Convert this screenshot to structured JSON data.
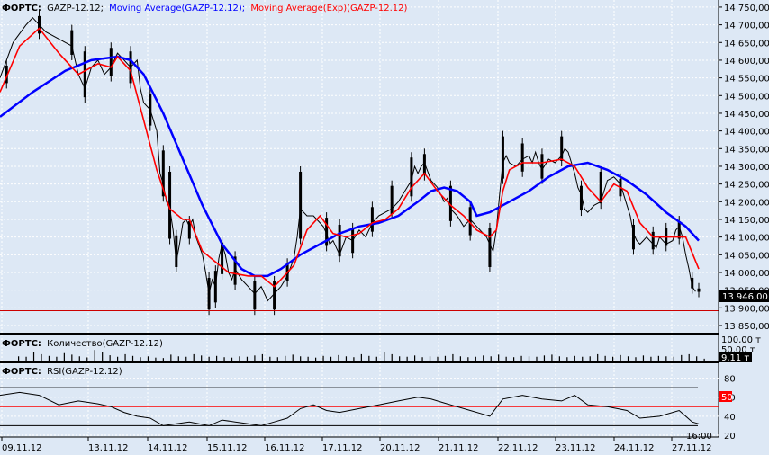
{
  "main_panel": {
    "label_prefix": "ФОРТС:",
    "ticker": "GAZP-12.12;",
    "ma_label": "Moving Average(GAZP-12.12);",
    "ema_label": "Moving Average(Exp)(GAZP-12.12)",
    "price_ticks": [
      "14 750,00",
      "14 700,00",
      "14 650,00",
      "14 600,00",
      "14 550,00",
      "14 500,00",
      "14 450,00",
      "14 400,00",
      "14 350,00",
      "14 300,00",
      "14 250,00",
      "14 200,00",
      "14 150,00",
      "14 100,00",
      "14 050,00",
      "14 000,00",
      "13 950,00",
      "13 900,00",
      "13 850,00"
    ],
    "last_price_label": "13 946,00",
    "hline_price": 13892
  },
  "volume_panel": {
    "label_prefix": "ФОРТС:",
    "label": "Количество(GAZP-12.12)",
    "ticks": [
      "100,00 т",
      "50,00 т"
    ],
    "last_label": "9,11 т"
  },
  "rsi_panel": {
    "label_prefix": "ФОРТС:",
    "label": "RSI(GAZP-12.12)",
    "ticks": [
      "80",
      "60",
      "40",
      "20"
    ],
    "level_label": "50",
    "upper_level": 70,
    "lower_level": 30
  },
  "time_axis": {
    "dates": [
      "09.11.12",
      "13.11.12",
      "14.11.12",
      "15.11.12",
      "16.11.12",
      "17.11.12",
      "20.11.12",
      "21.11.12",
      "22.11.12",
      "23.11.12",
      "24.11.12",
      "27.11.12"
    ],
    "time_label": "16:00"
  },
  "colors": {
    "background": "#dde8f5",
    "grid": "#ffffff",
    "candle": "#000000",
    "ma": "#0000ff",
    "ema": "#ff0000",
    "level_line": "#cc0000",
    "last_price_box": "#000000",
    "rsi_level_box": "#ff0000"
  },
  "chart_data": {
    "type": "line",
    "symbol": "GAZP-12.12",
    "ylim": [
      13850,
      14760
    ],
    "price_path": [
      [
        0,
        14550
      ],
      [
        4,
        14650
      ],
      [
        8,
        14700
      ],
      [
        10,
        14720
      ],
      [
        14,
        14680
      ],
      [
        18,
        14660
      ],
      [
        22,
        14640
      ],
      [
        24,
        14560
      ],
      [
        26,
        14520
      ],
      [
        28,
        14580
      ],
      [
        30,
        14600
      ],
      [
        32,
        14560
      ],
      [
        34,
        14580
      ],
      [
        36,
        14620
      ],
      [
        38,
        14600
      ],
      [
        40,
        14580
      ],
      [
        42,
        14600
      ],
      [
        43,
        14520
      ],
      [
        44,
        14480
      ],
      [
        46,
        14460
      ],
      [
        48,
        14400
      ],
      [
        49,
        14280
      ],
      [
        50,
        14250
      ],
      [
        51,
        14200
      ],
      [
        52,
        14180
      ],
      [
        53,
        14120
      ],
      [
        54,
        14030
      ],
      [
        55,
        14080
      ],
      [
        56,
        14140
      ],
      [
        57,
        14150
      ],
      [
        58,
        14130
      ],
      [
        59,
        14150
      ],
      [
        60,
        14100
      ],
      [
        62,
        14050
      ],
      [
        63,
        14000
      ],
      [
        64,
        13940
      ],
      [
        65,
        13980
      ],
      [
        66,
        13960
      ],
      [
        67,
        14040
      ],
      [
        68,
        14080
      ],
      [
        69,
        14050
      ],
      [
        70,
        14000
      ],
      [
        71,
        13980
      ],
      [
        72,
        14010
      ],
      [
        74,
        13980
      ],
      [
        76,
        13960
      ],
      [
        78,
        13940
      ],
      [
        79,
        13950
      ],
      [
        80,
        13960
      ],
      [
        82,
        13920
      ],
      [
        84,
        13940
      ],
      [
        86,
        13960
      ],
      [
        88,
        13990
      ],
      [
        90,
        14040
      ],
      [
        91,
        14100
      ],
      [
        92,
        14180
      ],
      [
        94,
        14160
      ],
      [
        96,
        14160
      ],
      [
        98,
        14140
      ],
      [
        99,
        14130
      ],
      [
        100,
        14110
      ],
      [
        101,
        14080
      ],
      [
        102,
        14090
      ],
      [
        104,
        14050
      ],
      [
        106,
        14100
      ],
      [
        108,
        14090
      ],
      [
        110,
        14120
      ],
      [
        112,
        14100
      ],
      [
        114,
        14140
      ],
      [
        116,
        14160
      ],
      [
        118,
        14170
      ],
      [
        120,
        14180
      ],
      [
        122,
        14200
      ],
      [
        124,
        14230
      ],
      [
        126,
        14260
      ],
      [
        127,
        14300
      ],
      [
        128,
        14280
      ],
      [
        129,
        14300
      ],
      [
        130,
        14310
      ],
      [
        132,
        14260
      ],
      [
        134,
        14240
      ],
      [
        136,
        14200
      ],
      [
        137,
        14210
      ],
      [
        138,
        14180
      ],
      [
        140,
        14160
      ],
      [
        142,
        14130
      ],
      [
        144,
        14150
      ],
      [
        146,
        14130
      ],
      [
        148,
        14110
      ],
      [
        149,
        14100
      ],
      [
        150,
        14080
      ],
      [
        151,
        14060
      ],
      [
        152,
        14120
      ],
      [
        153,
        14220
      ],
      [
        154,
        14310
      ],
      [
        155,
        14330
      ],
      [
        156,
        14310
      ],
      [
        158,
        14300
      ],
      [
        160,
        14320
      ],
      [
        162,
        14330
      ],
      [
        163,
        14310
      ],
      [
        164,
        14340
      ],
      [
        165,
        14310
      ],
      [
        166,
        14290
      ],
      [
        168,
        14320
      ],
      [
        170,
        14310
      ],
      [
        172,
        14330
      ],
      [
        173,
        14350
      ],
      [
        174,
        14340
      ],
      [
        175,
        14310
      ],
      [
        176,
        14280
      ],
      [
        177,
        14240
      ],
      [
        178,
        14220
      ],
      [
        179,
        14180
      ],
      [
        180,
        14170
      ],
      [
        182,
        14190
      ],
      [
        184,
        14200
      ],
      [
        185,
        14230
      ],
      [
        186,
        14260
      ],
      [
        188,
        14270
      ],
      [
        190,
        14250
      ],
      [
        192,
        14190
      ],
      [
        193,
        14160
      ],
      [
        194,
        14110
      ],
      [
        195,
        14090
      ],
      [
        196,
        14080
      ],
      [
        197,
        14090
      ],
      [
        198,
        14100
      ],
      [
        200,
        14080
      ],
      [
        201,
        14070
      ],
      [
        202,
        14100
      ],
      [
        204,
        14080
      ],
      [
        206,
        14090
      ],
      [
        207,
        14120
      ],
      [
        208,
        14130
      ],
      [
        209,
        14100
      ],
      [
        210,
        14050
      ],
      [
        211,
        14010
      ],
      [
        212,
        13960
      ],
      [
        213,
        13946
      ]
    ],
    "ma_path": [
      [
        0,
        14440
      ],
      [
        10,
        14510
      ],
      [
        20,
        14570
      ],
      [
        28,
        14600
      ],
      [
        36,
        14610
      ],
      [
        40,
        14600
      ],
      [
        44,
        14560
      ],
      [
        50,
        14450
      ],
      [
        56,
        14320
      ],
      [
        62,
        14190
      ],
      [
        68,
        14080
      ],
      [
        74,
        14010
      ],
      [
        78,
        13990
      ],
      [
        82,
        13990
      ],
      [
        86,
        14010
      ],
      [
        92,
        14050
      ],
      [
        98,
        14080
      ],
      [
        104,
        14110
      ],
      [
        110,
        14130
      ],
      [
        116,
        14140
      ],
      [
        122,
        14160
      ],
      [
        128,
        14200
      ],
      [
        132,
        14230
      ],
      [
        136,
        14240
      ],
      [
        140,
        14230
      ],
      [
        144,
        14200
      ],
      [
        146,
        14160
      ],
      [
        150,
        14170
      ],
      [
        156,
        14200
      ],
      [
        162,
        14230
      ],
      [
        168,
        14270
      ],
      [
        174,
        14300
      ],
      [
        180,
        14310
      ],
      [
        186,
        14290
      ],
      [
        192,
        14260
      ],
      [
        198,
        14220
      ],
      [
        204,
        14170
      ],
      [
        210,
        14130
      ],
      [
        214,
        14090
      ]
    ],
    "ema_path": [
      [
        0,
        14510
      ],
      [
        6,
        14640
      ],
      [
        12,
        14690
      ],
      [
        18,
        14620
      ],
      [
        24,
        14560
      ],
      [
        30,
        14590
      ],
      [
        34,
        14580
      ],
      [
        36,
        14610
      ],
      [
        40,
        14570
      ],
      [
        44,
        14430
      ],
      [
        48,
        14290
      ],
      [
        52,
        14180
      ],
      [
        56,
        14150
      ],
      [
        58,
        14150
      ],
      [
        62,
        14060
      ],
      [
        66,
        14030
      ],
      [
        70,
        14000
      ],
      [
        76,
        13990
      ],
      [
        80,
        13990
      ],
      [
        84,
        13960
      ],
      [
        86,
        13980
      ],
      [
        90,
        14020
      ],
      [
        94,
        14120
      ],
      [
        98,
        14160
      ],
      [
        102,
        14110
      ],
      [
        106,
        14100
      ],
      [
        110,
        14110
      ],
      [
        114,
        14140
      ],
      [
        118,
        14150
      ],
      [
        122,
        14180
      ],
      [
        126,
        14240
      ],
      [
        130,
        14280
      ],
      [
        134,
        14230
      ],
      [
        138,
        14190
      ],
      [
        142,
        14160
      ],
      [
        146,
        14120
      ],
      [
        150,
        14100
      ],
      [
        152,
        14120
      ],
      [
        154,
        14230
      ],
      [
        156,
        14290
      ],
      [
        160,
        14310
      ],
      [
        166,
        14310
      ],
      [
        172,
        14320
      ],
      [
        176,
        14300
      ],
      [
        180,
        14240
      ],
      [
        184,
        14200
      ],
      [
        188,
        14250
      ],
      [
        192,
        14230
      ],
      [
        196,
        14140
      ],
      [
        200,
        14100
      ],
      [
        206,
        14100
      ],
      [
        210,
        14100
      ],
      [
        214,
        14010
      ]
    ],
    "candle_ranges": [
      [
        2,
        14520,
        14600
      ],
      [
        12,
        14660,
        14740
      ],
      [
        22,
        14600,
        14700
      ],
      [
        26,
        14480,
        14640
      ],
      [
        34,
        14540,
        14650
      ],
      [
        40,
        14520,
        14640
      ],
      [
        46,
        14400,
        14520
      ],
      [
        50,
        14200,
        14360
      ],
      [
        52,
        14080,
        14300
      ],
      [
        54,
        14000,
        14120
      ],
      [
        58,
        14080,
        14160
      ],
      [
        64,
        13880,
        14000
      ],
      [
        66,
        13900,
        14020
      ],
      [
        68,
        13980,
        14100
      ],
      [
        72,
        13950,
        14060
      ],
      [
        78,
        13880,
        13990
      ],
      [
        84,
        13880,
        13990
      ],
      [
        88,
        13960,
        14040
      ],
      [
        92,
        14080,
        14300
      ],
      [
        100,
        14060,
        14170
      ],
      [
        104,
        14030,
        14150
      ],
      [
        108,
        14040,
        14140
      ],
      [
        114,
        14100,
        14200
      ],
      [
        120,
        14150,
        14260
      ],
      [
        126,
        14200,
        14340
      ],
      [
        130,
        14260,
        14350
      ],
      [
        138,
        14130,
        14260
      ],
      [
        144,
        14090,
        14200
      ],
      [
        150,
        14000,
        14140
      ],
      [
        154,
        14250,
        14400
      ],
      [
        160,
        14270,
        14380
      ],
      [
        166,
        14250,
        14350
      ],
      [
        172,
        14300,
        14400
      ],
      [
        178,
        14160,
        14260
      ],
      [
        184,
        14180,
        14300
      ],
      [
        190,
        14200,
        14280
      ],
      [
        194,
        14050,
        14150
      ],
      [
        200,
        14050,
        14130
      ],
      [
        204,
        14060,
        14140
      ],
      [
        208,
        14080,
        14160
      ],
      [
        212,
        13940,
        14000
      ],
      [
        214,
        13930,
        13970
      ]
    ],
    "volume_values": [
      20,
      18,
      40,
      30,
      22,
      18,
      35,
      28,
      20,
      15,
      50,
      38,
      25,
      18,
      30,
      22,
      16,
      20,
      14,
      12,
      28,
      20,
      18,
      30,
      24,
      18,
      22,
      16,
      14,
      20,
      18,
      24,
      30,
      18,
      16,
      22,
      28,
      20,
      18,
      14,
      22,
      18,
      26,
      20,
      16,
      30,
      22,
      18,
      40,
      30,
      20,
      18,
      24,
      16,
      20,
      18,
      22,
      30,
      20,
      16,
      18,
      24,
      20,
      28,
      18,
      16,
      22,
      20,
      18,
      24,
      28,
      20,
      16,
      22,
      18,
      20,
      30,
      22,
      18,
      26,
      20,
      16,
      24,
      18,
      22,
      20,
      18,
      26,
      30,
      20,
      9
    ],
    "rsi_path": [
      [
        0,
        62
      ],
      [
        6,
        65
      ],
      [
        12,
        62
      ],
      [
        18,
        52
      ],
      [
        24,
        56
      ],
      [
        30,
        53
      ],
      [
        34,
        50
      ],
      [
        38,
        44
      ],
      [
        42,
        40
      ],
      [
        46,
        38
      ],
      [
        50,
        30
      ],
      [
        54,
        32
      ],
      [
        58,
        34
      ],
      [
        64,
        30
      ],
      [
        68,
        36
      ],
      [
        72,
        34
      ],
      [
        76,
        32
      ],
      [
        80,
        30
      ],
      [
        84,
        34
      ],
      [
        88,
        38
      ],
      [
        92,
        48
      ],
      [
        96,
        52
      ],
      [
        100,
        46
      ],
      [
        104,
        44
      ],
      [
        110,
        48
      ],
      [
        116,
        52
      ],
      [
        122,
        56
      ],
      [
        128,
        60
      ],
      [
        132,
        58
      ],
      [
        136,
        54
      ],
      [
        140,
        50
      ],
      [
        144,
        46
      ],
      [
        148,
        42
      ],
      [
        150,
        40
      ],
      [
        154,
        58
      ],
      [
        160,
        62
      ],
      [
        166,
        58
      ],
      [
        172,
        56
      ],
      [
        176,
        62
      ],
      [
        180,
        52
      ],
      [
        186,
        50
      ],
      [
        192,
        46
      ],
      [
        196,
        38
      ],
      [
        202,
        40
      ],
      [
        208,
        46
      ],
      [
        212,
        34
      ],
      [
        214,
        32
      ]
    ],
    "rsi_ylim": [
      20,
      90
    ],
    "x_count": 215,
    "dates": [
      "09.11.12",
      "13.11.12",
      "14.11.12",
      "15.11.12",
      "16.11.12",
      "17.11.12",
      "20.11.12",
      "21.11.12",
      "22.11.12",
      "23.11.12",
      "24.11.12",
      "27.11.12"
    ]
  }
}
